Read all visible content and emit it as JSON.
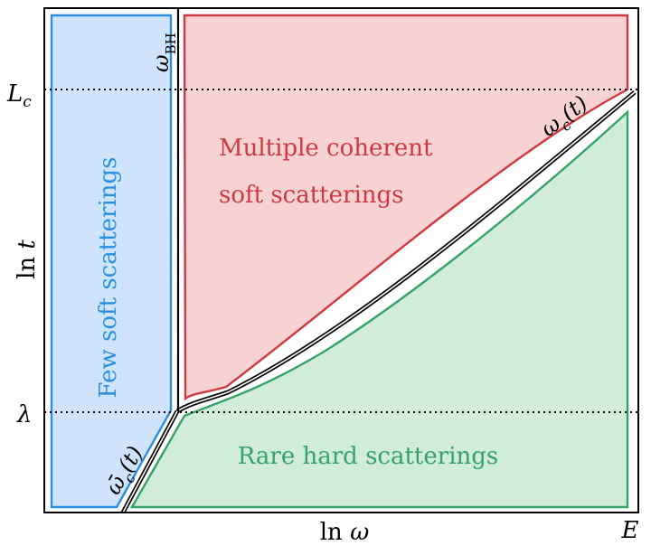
{
  "axes": {
    "x_label": "ln ω",
    "x_label_var": "ω",
    "x_end_label": "E",
    "y_label": "ln t",
    "y_label_var": "t",
    "y_tick_upper": "L",
    "y_tick_upper_sub": "c",
    "y_tick_lower": "λ"
  },
  "regions": {
    "few_soft": {
      "label": "Few soft scatterings",
      "fill": "#cfe4fb",
      "stroke": "#2b8fdd"
    },
    "multiple_coherent": {
      "label_line1": "Multiple coherent",
      "label_line2": "soft scatterings",
      "fill": "#f6d2d3",
      "stroke": "#cc3a40"
    },
    "rare_hard": {
      "label": "Rare hard scatterings",
      "fill": "#d2ecdc",
      "stroke": "#35a266"
    }
  },
  "curves": {
    "omega_bh": {
      "symbol": "ω",
      "subscript": "BH"
    },
    "omega_c": {
      "symbol": "ω",
      "subscript": "c",
      "argument": "(t)"
    },
    "omega_c_bar": {
      "symbol": "ω̄",
      "subscript": "c",
      "argument": "(t)"
    }
  }
}
